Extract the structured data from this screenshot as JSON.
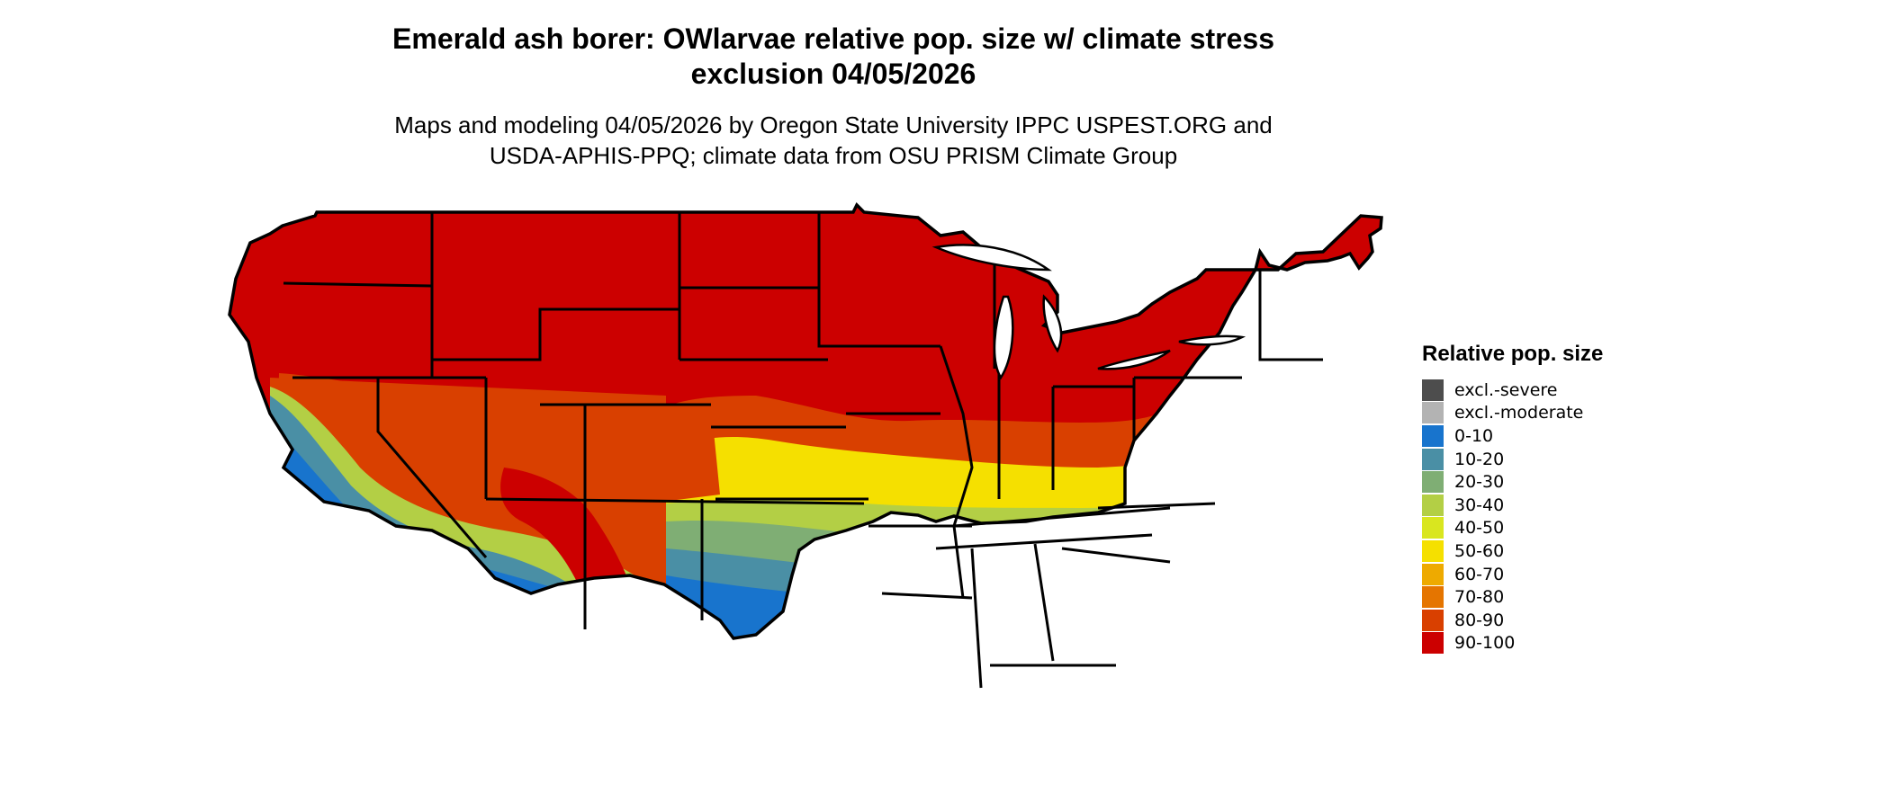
{
  "title": {
    "line1": "Emerald ash borer: OWlarvae relative pop. size w/ climate stress",
    "line2": "exclusion 04/05/2026"
  },
  "subtitle": {
    "line1": "Maps and modeling 04/05/2026 by Oregon State University IPPC USPEST.ORG and",
    "line2": "USDA-APHIS-PPQ; climate data from OSU PRISM Climate Group"
  },
  "legend": {
    "title": "Relative pop. size",
    "items": [
      {
        "label": "excl.-severe",
        "color": "#4d4d4d"
      },
      {
        "label": "excl.-moderate",
        "color": "#b3b3b3"
      },
      {
        "label": "0-10",
        "color": "#1874cd"
      },
      {
        "label": "10-20",
        "color": "#4a8fa5"
      },
      {
        "label": "20-30",
        "color": "#7fae74"
      },
      {
        "label": "30-40",
        "color": "#b3cf45"
      },
      {
        "label": "40-50",
        "color": "#d9e61f"
      },
      {
        "label": "50-60",
        "color": "#f5e000"
      },
      {
        "label": "60-70",
        "color": "#eeaa00"
      },
      {
        "label": "70-80",
        "color": "#e57500"
      },
      {
        "label": "80-90",
        "color": "#d94000"
      },
      {
        "label": "90-100",
        "color": "#cc0000"
      }
    ]
  },
  "map": {
    "region": "Continental United States",
    "boundary_color": "#000000"
  }
}
